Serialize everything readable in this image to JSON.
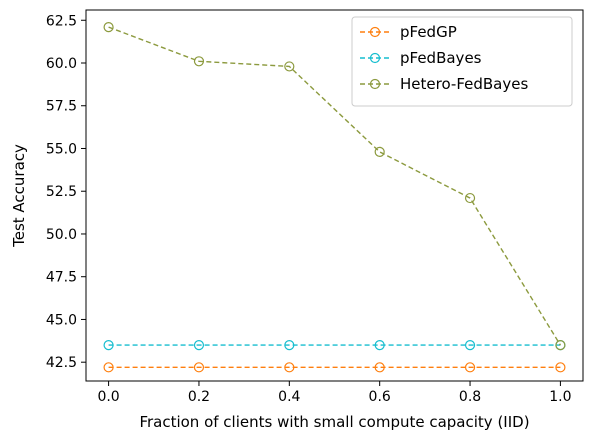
{
  "chart_data": {
    "type": "line",
    "title": "",
    "xlabel": "Fraction of clients with small compute capacity (IID)",
    "ylabel": "Test Accuracy",
    "x": [
      0.0,
      0.2,
      0.4,
      0.6,
      0.8,
      1.0
    ],
    "xticks": [
      "0.0",
      "0.2",
      "0.4",
      "0.6",
      "0.8",
      "1.0"
    ],
    "yticks": [
      "42.5",
      "45.0",
      "47.5",
      "50.0",
      "52.5",
      "55.0",
      "57.5",
      "60.0",
      "62.5"
    ],
    "xlim": [
      -0.05,
      1.05
    ],
    "ylim": [
      41.4,
      63.1
    ],
    "grid": false,
    "legend_position": "top-right",
    "series": [
      {
        "name": "pFedGP",
        "color": "#ff7f0e",
        "values": [
          42.2,
          42.2,
          42.2,
          42.2,
          42.2,
          42.2
        ]
      },
      {
        "name": "pFedBayes",
        "color": "#17becf",
        "values": [
          43.5,
          43.5,
          43.5,
          43.5,
          43.5,
          43.5
        ]
      },
      {
        "name": "Hetero-FedBayes",
        "color": "#8c9a3e",
        "values": [
          62.1,
          60.1,
          59.8,
          54.8,
          52.1,
          43.5
        ]
      }
    ]
  }
}
